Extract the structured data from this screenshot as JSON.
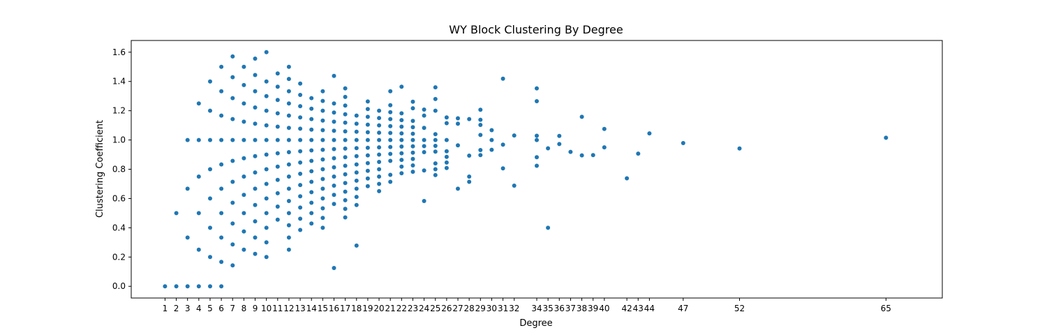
{
  "chart_data": {
    "type": "scatter",
    "title": "WY Block Clustering By Degree",
    "xlabel": "Degree",
    "ylabel": "Clustering Coefficient",
    "xlim": [
      -2,
      70
    ],
    "ylim": [
      -0.08,
      1.68
    ],
    "xticks": [
      1,
      2,
      3,
      4,
      5,
      6,
      7,
      8,
      9,
      10,
      11,
      12,
      13,
      14,
      15,
      16,
      17,
      18,
      19,
      20,
      21,
      22,
      23,
      24,
      25,
      26,
      27,
      28,
      29,
      30,
      31,
      32,
      34,
      35,
      36,
      37,
      38,
      39,
      40,
      42,
      43,
      44,
      47,
      52,
      65
    ],
    "yticks": [
      0.0,
      0.2,
      0.4,
      0.6,
      0.8,
      1.0,
      1.2,
      1.4,
      1.6
    ],
    "grid": false,
    "marker_color": "#1f77b4",
    "series": [
      {
        "name": "",
        "points": [
          [
            1,
            0.0
          ],
          [
            2,
            0.0
          ],
          [
            2,
            0.5
          ],
          [
            3,
            0.0
          ],
          [
            3,
            0.333
          ],
          [
            3,
            0.667
          ],
          [
            3,
            1.0
          ],
          [
            4,
            0.0
          ],
          [
            4,
            0.25
          ],
          [
            4,
            0.5
          ],
          [
            4,
            0.75
          ],
          [
            4,
            1.0
          ],
          [
            4,
            1.25
          ],
          [
            5,
            0.0
          ],
          [
            5,
            0.2
          ],
          [
            5,
            0.4
          ],
          [
            5,
            0.6
          ],
          [
            5,
            0.8
          ],
          [
            5,
            1.0
          ],
          [
            5,
            1.2
          ],
          [
            5,
            1.4
          ],
          [
            6,
            0.0
          ],
          [
            6,
            0.167
          ],
          [
            6,
            0.333
          ],
          [
            6,
            0.5
          ],
          [
            6,
            0.667
          ],
          [
            6,
            0.833
          ],
          [
            6,
            1.0
          ],
          [
            6,
            1.167
          ],
          [
            6,
            1.333
          ],
          [
            6,
            1.5
          ],
          [
            7,
            0.143
          ],
          [
            7,
            0.286
          ],
          [
            7,
            0.429
          ],
          [
            7,
            0.571
          ],
          [
            7,
            0.714
          ],
          [
            7,
            0.857
          ],
          [
            7,
            1.0
          ],
          [
            7,
            1.143
          ],
          [
            7,
            1.286
          ],
          [
            7,
            1.429
          ],
          [
            7,
            1.571
          ],
          [
            8,
            0.25
          ],
          [
            8,
            0.375
          ],
          [
            8,
            0.5
          ],
          [
            8,
            0.625
          ],
          [
            8,
            0.75
          ],
          [
            8,
            0.875
          ],
          [
            8,
            1.0
          ],
          [
            8,
            1.125
          ],
          [
            8,
            1.25
          ],
          [
            8,
            1.375
          ],
          [
            8,
            1.5
          ],
          [
            9,
            0.222
          ],
          [
            9,
            0.333
          ],
          [
            9,
            0.444
          ],
          [
            9,
            0.556
          ],
          [
            9,
            0.667
          ],
          [
            9,
            0.778
          ],
          [
            9,
            0.889
          ],
          [
            9,
            1.0
          ],
          [
            9,
            1.111
          ],
          [
            9,
            1.222
          ],
          [
            9,
            1.333
          ],
          [
            9,
            1.444
          ],
          [
            9,
            1.556
          ],
          [
            10,
            0.2
          ],
          [
            10,
            0.3
          ],
          [
            10,
            0.4
          ],
          [
            10,
            0.5
          ],
          [
            10,
            0.6
          ],
          [
            10,
            0.7
          ],
          [
            10,
            0.8
          ],
          [
            10,
            0.9
          ],
          [
            10,
            1.0
          ],
          [
            10,
            1.1
          ],
          [
            10,
            1.2
          ],
          [
            10,
            1.3
          ],
          [
            10,
            1.4
          ],
          [
            10,
            1.6
          ],
          [
            11,
            0.455
          ],
          [
            11,
            0.545
          ],
          [
            11,
            0.636
          ],
          [
            11,
            0.727
          ],
          [
            11,
            0.818
          ],
          [
            11,
            0.909
          ],
          [
            11,
            1.0
          ],
          [
            11,
            1.091
          ],
          [
            11,
            1.182
          ],
          [
            11,
            1.273
          ],
          [
            11,
            1.364
          ],
          [
            11,
            1.455
          ],
          [
            12,
            0.25
          ],
          [
            12,
            0.333
          ],
          [
            12,
            0.417
          ],
          [
            12,
            0.5
          ],
          [
            12,
            0.583
          ],
          [
            12,
            0.667
          ],
          [
            12,
            0.75
          ],
          [
            12,
            0.833
          ],
          [
            12,
            0.917
          ],
          [
            12,
            1.0
          ],
          [
            12,
            1.083
          ],
          [
            12,
            1.167
          ],
          [
            12,
            1.25
          ],
          [
            12,
            1.333
          ],
          [
            12,
            1.417
          ],
          [
            12,
            1.5
          ],
          [
            13,
            0.385
          ],
          [
            13,
            0.462
          ],
          [
            13,
            0.538
          ],
          [
            13,
            0.615
          ],
          [
            13,
            0.692
          ],
          [
            13,
            0.769
          ],
          [
            13,
            0.846
          ],
          [
            13,
            0.923
          ],
          [
            13,
            1.0
          ],
          [
            13,
            1.077
          ],
          [
            13,
            1.154
          ],
          [
            13,
            1.231
          ],
          [
            13,
            1.308
          ],
          [
            13,
            1.385
          ],
          [
            14,
            0.429
          ],
          [
            14,
            0.5
          ],
          [
            14,
            0.571
          ],
          [
            14,
            0.643
          ],
          [
            14,
            0.714
          ],
          [
            14,
            0.786
          ],
          [
            14,
            0.857
          ],
          [
            14,
            0.929
          ],
          [
            14,
            1.0
          ],
          [
            14,
            1.071
          ],
          [
            14,
            1.143
          ],
          [
            14,
            1.214
          ],
          [
            14,
            1.286
          ],
          [
            15,
            0.4
          ],
          [
            15,
            0.467
          ],
          [
            15,
            0.533
          ],
          [
            15,
            0.6
          ],
          [
            15,
            0.667
          ],
          [
            15,
            0.733
          ],
          [
            15,
            0.8
          ],
          [
            15,
            0.867
          ],
          [
            15,
            0.933
          ],
          [
            15,
            1.0
          ],
          [
            15,
            1.067
          ],
          [
            15,
            1.133
          ],
          [
            15,
            1.2
          ],
          [
            15,
            1.267
          ],
          [
            15,
            1.333
          ],
          [
            16,
            0.125
          ],
          [
            16,
            0.563
          ],
          [
            16,
            0.625
          ],
          [
            16,
            0.688
          ],
          [
            16,
            0.75
          ],
          [
            16,
            0.813
          ],
          [
            16,
            0.875
          ],
          [
            16,
            0.938
          ],
          [
            16,
            1.0
          ],
          [
            16,
            1.063
          ],
          [
            16,
            1.125
          ],
          [
            16,
            1.188
          ],
          [
            16,
            1.25
          ],
          [
            16,
            1.438
          ],
          [
            17,
            0.471
          ],
          [
            17,
            0.529
          ],
          [
            17,
            0.588
          ],
          [
            17,
            0.647
          ],
          [
            17,
            0.706
          ],
          [
            17,
            0.765
          ],
          [
            17,
            0.824
          ],
          [
            17,
            0.882
          ],
          [
            17,
            0.941
          ],
          [
            17,
            1.0
          ],
          [
            17,
            1.059
          ],
          [
            17,
            1.118
          ],
          [
            17,
            1.176
          ],
          [
            17,
            1.235
          ],
          [
            17,
            1.294
          ],
          [
            17,
            1.353
          ],
          [
            18,
            0.278
          ],
          [
            18,
            0.556
          ],
          [
            18,
            0.611
          ],
          [
            18,
            0.667
          ],
          [
            18,
            0.722
          ],
          [
            18,
            0.778
          ],
          [
            18,
            0.833
          ],
          [
            18,
            0.889
          ],
          [
            18,
            0.944
          ],
          [
            18,
            1.0
          ],
          [
            18,
            1.056
          ],
          [
            18,
            1.111
          ],
          [
            18,
            1.167
          ],
          [
            19,
            0.684
          ],
          [
            19,
            0.737
          ],
          [
            19,
            0.789
          ],
          [
            19,
            0.842
          ],
          [
            19,
            0.895
          ],
          [
            19,
            0.947
          ],
          [
            19,
            1.0
          ],
          [
            19,
            1.053
          ],
          [
            19,
            1.105
          ],
          [
            19,
            1.158
          ],
          [
            19,
            1.211
          ],
          [
            19,
            1.263
          ],
          [
            20,
            0.65
          ],
          [
            20,
            0.7
          ],
          [
            20,
            0.75
          ],
          [
            20,
            0.8
          ],
          [
            20,
            0.85
          ],
          [
            20,
            0.9
          ],
          [
            20,
            0.95
          ],
          [
            20,
            1.0
          ],
          [
            20,
            1.05
          ],
          [
            20,
            1.1
          ],
          [
            20,
            1.15
          ],
          [
            20,
            1.2
          ],
          [
            21,
            0.714
          ],
          [
            21,
            0.762
          ],
          [
            21,
            0.857
          ],
          [
            21,
            0.905
          ],
          [
            21,
            0.952
          ],
          [
            21,
            1.0
          ],
          [
            21,
            1.048
          ],
          [
            21,
            1.095
          ],
          [
            21,
            1.143
          ],
          [
            21,
            1.19
          ],
          [
            21,
            1.238
          ],
          [
            21,
            1.333
          ],
          [
            22,
            0.773
          ],
          [
            22,
            0.818
          ],
          [
            22,
            0.864
          ],
          [
            22,
            0.909
          ],
          [
            22,
            0.955
          ],
          [
            22,
            1.0
          ],
          [
            22,
            1.045
          ],
          [
            22,
            1.091
          ],
          [
            22,
            1.136
          ],
          [
            22,
            1.182
          ],
          [
            22,
            1.364
          ],
          [
            23,
            0.783
          ],
          [
            23,
            0.826
          ],
          [
            23,
            0.87
          ],
          [
            23,
            0.913
          ],
          [
            23,
            0.957
          ],
          [
            23,
            1.0
          ],
          [
            23,
            1.043
          ],
          [
            23,
            1.087
          ],
          [
            23,
            1.13
          ],
          [
            23,
            1.217
          ],
          [
            23,
            1.261
          ],
          [
            24,
            0.583
          ],
          [
            24,
            0.792
          ],
          [
            24,
            0.917
          ],
          [
            24,
            0.958
          ],
          [
            24,
            1.0
          ],
          [
            24,
            1.083
          ],
          [
            24,
            1.167
          ],
          [
            24,
            1.208
          ],
          [
            25,
            0.76
          ],
          [
            25,
            0.8
          ],
          [
            25,
            0.84
          ],
          [
            25,
            0.92
          ],
          [
            25,
            0.96
          ],
          [
            25,
            1.0
          ],
          [
            25,
            1.04
          ],
          [
            25,
            1.2
          ],
          [
            25,
            1.28
          ],
          [
            25,
            1.36
          ],
          [
            26,
            0.808
          ],
          [
            26,
            0.846
          ],
          [
            26,
            0.885
          ],
          [
            26,
            0.923
          ],
          [
            26,
            1.0
          ],
          [
            26,
            1.115
          ],
          [
            26,
            1.154
          ],
          [
            27,
            0.667
          ],
          [
            27,
            0.963
          ],
          [
            27,
            1.111
          ],
          [
            27,
            1.148
          ],
          [
            28,
            0.714
          ],
          [
            28,
            0.75
          ],
          [
            28,
            0.893
          ],
          [
            28,
            1.143
          ],
          [
            29,
            0.897
          ],
          [
            29,
            0.931
          ],
          [
            29,
            1.034
          ],
          [
            29,
            1.103
          ],
          [
            29,
            1.138
          ],
          [
            29,
            1.207
          ],
          [
            30,
            0.933
          ],
          [
            30,
            1.0
          ],
          [
            30,
            1.067
          ],
          [
            31,
            0.806
          ],
          [
            31,
            0.968
          ],
          [
            31,
            1.419
          ],
          [
            32,
            0.688
          ],
          [
            32,
            1.031
          ],
          [
            34,
            0.824
          ],
          [
            34,
            0.882
          ],
          [
            34,
            1.0
          ],
          [
            34,
            1.029
          ],
          [
            34,
            1.265
          ],
          [
            34,
            1.353
          ],
          [
            35,
            0.4
          ],
          [
            35,
            0.943
          ],
          [
            36,
            0.972
          ],
          [
            36,
            1.028
          ],
          [
            37,
            0.919
          ],
          [
            38,
            0.895
          ],
          [
            38,
            1.158
          ],
          [
            39,
            0.897
          ],
          [
            40,
            0.95
          ],
          [
            40,
            1.075
          ],
          [
            42,
            0.738
          ],
          [
            43,
            0.907
          ],
          [
            44,
            1.045
          ],
          [
            47,
            0.979
          ],
          [
            52,
            0.942
          ],
          [
            65,
            1.015
          ]
        ]
      }
    ]
  }
}
